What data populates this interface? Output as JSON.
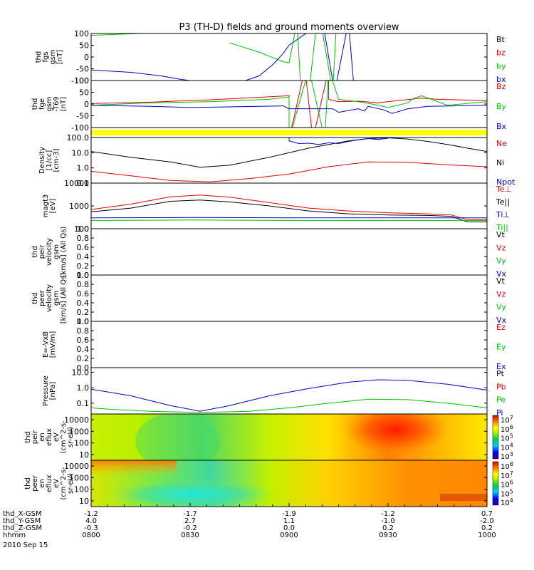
{
  "title": "P3 (TH-D) fields and ground moments overview",
  "colors": {
    "black": "#000000",
    "red": "#e00000",
    "green": "#00c000",
    "blue": "#0000d0",
    "yellow": "#ffff00"
  },
  "chart_data": [
    {
      "panel": "fgs",
      "type": "line",
      "ylabel": [
        "thd",
        "fgs",
        "gsm",
        "[nT]"
      ],
      "ylim": [
        -100,
        100
      ],
      "yticks": [
        "100",
        "50",
        "0",
        "-50",
        "-100"
      ],
      "legend": [
        {
          "label": "Bt",
          "color": "black"
        },
        {
          "label": "bz",
          "color": "red"
        },
        {
          "label": "by",
          "color": "green"
        },
        {
          "label": "bx",
          "color": "blue"
        }
      ],
      "series": [
        {
          "name": "by",
          "x": [
            8.0,
            8.25,
            8.4,
            8.55,
            8.7,
            8.85,
            8.97,
            9.0,
            9.04,
            9.06,
            9.1,
            9.14,
            9.16,
            9.22,
            9.24
          ],
          "y": [
            92,
            100,
            null,
            null,
            60,
            20,
            -20,
            -25,
            150,
            -150,
            -150,
            150,
            150,
            -150,
            150
          ]
        },
        {
          "name": "bx",
          "x": [
            8.0,
            8.2,
            8.35,
            8.45,
            8.5,
            8.78,
            8.85,
            8.92,
            8.97,
            9.0,
            9.17,
            9.23,
            9.3,
            9.33
          ],
          "y": [
            -55,
            -65,
            -80,
            -95,
            -100,
            -100,
            -80,
            -30,
            15,
            50,
            150,
            -150,
            150,
            -150
          ]
        }
      ]
    },
    {
      "panel": "fge",
      "type": "line",
      "ylabel": [
        "thd",
        "fge",
        "gsm",
        "-T69",
        "[nT]"
      ],
      "ylim": [
        -100,
        100
      ],
      "yticks": [
        "100",
        "50",
        "0",
        "-50",
        "-100"
      ],
      "legend": [
        {
          "label": "Bz",
          "color": "red"
        },
        {
          "label": "By",
          "color": "green"
        },
        {
          "label": "Bx",
          "color": "blue"
        }
      ],
      "series": [
        {
          "name": "Bz",
          "x": [
            8.0,
            8.3,
            8.6,
            9.0,
            9.0,
            9.08,
            9.12,
            9.2,
            9.2,
            9.25,
            9.35,
            9.45,
            9.55,
            9.67,
            9.75,
            10.0
          ],
          "y": [
            2,
            8,
            18,
            35,
            -150,
            150,
            -150,
            150,
            20,
            10,
            12,
            5,
            15,
            25,
            20,
            15
          ]
        },
        {
          "name": "By",
          "x": [
            8.0,
            8.3,
            8.6,
            8.9,
            9.0,
            9.0,
            9.1,
            9.18,
            9.2,
            9.25,
            9.35,
            9.42,
            9.5,
            9.6,
            9.63,
            9.67,
            9.8,
            10.0
          ],
          "y": [
            -5,
            5,
            10,
            20,
            30,
            -150,
            150,
            -150,
            150,
            20,
            10,
            0,
            -15,
            5,
            25,
            35,
            -5,
            10
          ]
        },
        {
          "name": "Bx",
          "x": [
            8.0,
            8.3,
            8.5,
            8.85,
            8.97,
            9.0,
            9.22,
            9.25,
            9.35,
            9.38,
            9.4,
            9.48,
            9.52,
            9.6,
            9.7,
            10.0
          ],
          "y": [
            -5,
            -10,
            -15,
            -10,
            -8,
            -20,
            -20,
            -35,
            -20,
            -30,
            -10,
            -25,
            -40,
            -20,
            -10,
            -5
          ]
        }
      ]
    },
    {
      "panel": "bar",
      "type": "heatmap",
      "ylabel": [],
      "color": "yellow"
    },
    {
      "panel": "density",
      "type": "line",
      "scale": "log",
      "ylabel": [
        "Density",
        "[1/cc]",
        "[cm-3]"
      ],
      "ylim": [
        0.1,
        100
      ],
      "yticks": [
        "100.0",
        "10.0",
        "1.0",
        "0.1"
      ],
      "legend": [
        {
          "label": "Ne",
          "color": "red"
        },
        {
          "label": "Ni",
          "color": "black"
        },
        {
          "label": "Npot",
          "color": "blue"
        }
      ],
      "series": [
        {
          "name": "Ni",
          "x": [
            8.0,
            8.2,
            8.4,
            8.55,
            8.7,
            8.9,
            9.1,
            9.3,
            9.4,
            9.5,
            9.6,
            9.7,
            9.8,
            9.9,
            10.0
          ],
          "y": [
            12,
            5,
            2.5,
            1.1,
            1.5,
            5,
            20,
            60,
            85,
            95,
            80,
            55,
            35,
            20,
            12
          ]
        },
        {
          "name": "Ne",
          "x": [
            8.0,
            8.2,
            8.4,
            8.6,
            8.8,
            9.0,
            9.2,
            9.4,
            9.6,
            9.8,
            10.0
          ],
          "y": [
            0.6,
            0.3,
            0.15,
            0.12,
            0.2,
            0.4,
            1.2,
            2.5,
            2.3,
            1.6,
            1.2
          ]
        },
        {
          "name": "Npot",
          "x": [
            9.0,
            9.0,
            9.05,
            9.1,
            9.15,
            9.2,
            9.25,
            9.3,
            9.35,
            9.4,
            9.45,
            9.5,
            9.5
          ],
          "y": [
            100,
            60,
            40,
            42,
            35,
            45,
            40,
            55,
            70,
            85,
            75,
            90,
            100
          ]
        }
      ]
    },
    {
      "panel": "temperature",
      "type": "line",
      "scale": "log",
      "ylabel": [
        "magt3",
        "[eV]"
      ],
      "ylim": [
        100,
        10000
      ],
      "yticks": [
        "10000",
        "1000",
        "100"
      ],
      "legend": [
        {
          "label": "Te⊥",
          "color": "red"
        },
        {
          "label": "Te||",
          "color": "black"
        },
        {
          "label": "Ti⊥",
          "color": "blue"
        },
        {
          "label": "Ti||",
          "color": "green"
        }
      ],
      "series": [
        {
          "name": "Te⊥",
          "x": [
            8.0,
            8.2,
            8.4,
            8.55,
            8.7,
            8.9,
            9.1,
            9.3,
            9.5,
            9.7,
            9.82,
            9.9,
            10.0
          ],
          "y": [
            700,
            1200,
            2500,
            3000,
            2400,
            1400,
            800,
            600,
            500,
            450,
            400,
            250,
            250
          ]
        },
        {
          "name": "Te||",
          "x": [
            8.0,
            8.2,
            8.4,
            8.55,
            8.7,
            8.9,
            9.1,
            9.3,
            9.5,
            9.7,
            9.82,
            9.9,
            10.0
          ],
          "y": [
            550,
            800,
            1600,
            1800,
            1500,
            1000,
            600,
            450,
            400,
            380,
            350,
            200,
            200
          ]
        },
        {
          "name": "Ti⊥",
          "x": [
            8.0,
            8.5,
            9.0,
            9.5,
            9.8,
            10.0
          ],
          "y": [
            300,
            310,
            300,
            300,
            300,
            300
          ]
        },
        {
          "name": "Ti||",
          "x": [
            8.0,
            8.5,
            9.0,
            9.5,
            9.8,
            10.0
          ],
          "y": [
            230,
            240,
            230,
            230,
            230,
            230
          ]
        }
      ]
    },
    {
      "panel": "peir-velocity",
      "type": "line",
      "ylabel": [
        "thd",
        "peir",
        "velocity",
        "gsm",
        "[km/s] (All Qs)"
      ],
      "ylim": [
        0,
        1
      ],
      "yticks": [
        "1.0",
        "0.8",
        "0.6",
        "0.4",
        "0.2",
        "0.0"
      ],
      "legend": [
        {
          "label": "Vt",
          "color": "black"
        },
        {
          "label": "Vz",
          "color": "red"
        },
        {
          "label": "Vy",
          "color": "green"
        },
        {
          "label": "Vx",
          "color": "blue"
        }
      ],
      "series": []
    },
    {
      "panel": "peer-velocity",
      "type": "line",
      "ylabel": [
        "thd",
        "peer",
        "velocity",
        "gsm",
        "[km/s] (All Qs)"
      ],
      "ylim": [
        0,
        1
      ],
      "yticks": [
        "1.0",
        "0.8",
        "0.6",
        "0.4",
        "0.2",
        "0.0"
      ],
      "legend": [
        {
          "label": "Vt",
          "color": "black"
        },
        {
          "label": "Vz",
          "color": "red"
        },
        {
          "label": "Vy",
          "color": "green"
        },
        {
          "label": "Vx",
          "color": "blue"
        }
      ],
      "series": []
    },
    {
      "panel": "efield",
      "type": "line",
      "ylabel": [
        "E=-VxB",
        "[mV/m]"
      ],
      "ylim": [
        0,
        1
      ],
      "yticks": [
        "1.0",
        "0.8",
        "0.6",
        "0.4",
        "0.2",
        "0.0"
      ],
      "legend": [
        {
          "label": "Ez",
          "color": "red"
        },
        {
          "label": "Ey",
          "color": "green"
        },
        {
          "label": "Ex",
          "color": "blue"
        }
      ],
      "series": []
    },
    {
      "panel": "pressure",
      "type": "line",
      "scale": "log",
      "ylabel": [
        "Pressure",
        "[nPa]"
      ],
      "ylim": [
        0.02,
        20
      ],
      "yticks": [
        "10.0",
        "1.0",
        "0.1"
      ],
      "legend": [
        {
          "label": "Pt",
          "color": "black"
        },
        {
          "label": "Pb",
          "color": "red"
        },
        {
          "label": "Pe",
          "color": "green"
        },
        {
          "label": "Pi",
          "color": "blue"
        }
      ],
      "series": [
        {
          "name": "Pi",
          "x": [
            8.0,
            8.2,
            8.4,
            8.55,
            8.7,
            8.9,
            9.1,
            9.3,
            9.45,
            9.6,
            9.8,
            10.0
          ],
          "y": [
            0.8,
            0.3,
            0.07,
            0.03,
            0.07,
            0.3,
            0.9,
            2.3,
            3.3,
            3.0,
            1.7,
            0.7
          ]
        },
        {
          "name": "Pe",
          "x": [
            8.0,
            8.1,
            8.3,
            8.55,
            8.8,
            9.0,
            9.2,
            9.4,
            9.6,
            9.8,
            10.0
          ],
          "y": [
            0.05,
            0.04,
            0.03,
            0.025,
            0.03,
            0.05,
            0.1,
            0.18,
            0.17,
            0.1,
            0.05
          ]
        }
      ]
    },
    {
      "panel": "peir-eflux",
      "type": "heatmap",
      "ylabel": [
        "thd",
        "peir",
        "en",
        "eflux",
        "eV",
        "(cm^2-s-",
        "sr-eV)"
      ],
      "yticks": [
        "10000",
        "1000",
        "100",
        "10"
      ],
      "colorbar": [
        "10^7",
        "10^6",
        "10^5",
        "10^4",
        "10^3"
      ]
    },
    {
      "panel": "peer-eflux",
      "type": "heatmap",
      "ylabel": [
        "thd",
        "peer",
        "en",
        "eflux",
        "eV",
        "(cm^2-s-",
        "sr-eV)"
      ],
      "yticks": [
        "10000",
        "1000",
        "100",
        "10"
      ],
      "colorbar": [
        "10^8",
        "10^7",
        "10^6",
        "10^5",
        "10^4"
      ]
    }
  ],
  "time_axis": {
    "rows": [
      {
        "label": "thd_X-GSM",
        "values": [
          "-1.2",
          "-1.7",
          "-1.9",
          "-1.2",
          "0.7"
        ]
      },
      {
        "label": "thd_Y-GSM",
        "values": [
          "4.0",
          "2.7",
          "1.1",
          "-1.0",
          "-2.0"
        ]
      },
      {
        "label": "thd_Z-GSM",
        "values": [
          "-0.3",
          "-0.2",
          "0.0",
          "0.2",
          "0.2"
        ]
      },
      {
        "label": "hhmm",
        "values": [
          "0800",
          "0830",
          "0900",
          "0930",
          "1000"
        ]
      }
    ],
    "date": "2010 Sep 15"
  }
}
